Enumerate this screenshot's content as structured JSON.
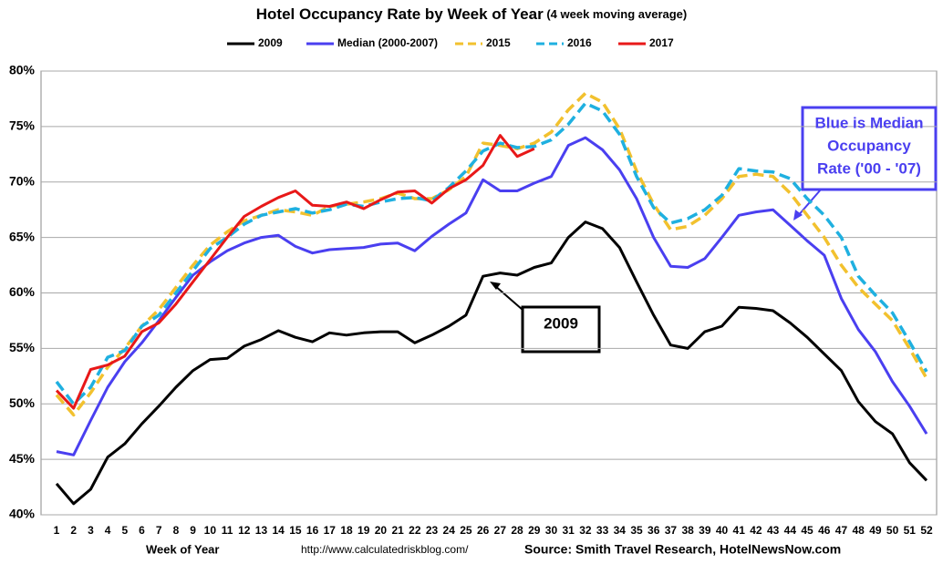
{
  "chart_data": {
    "type": "line",
    "title": "Hotel Occupancy Rate by  Week of Year",
    "subtitle": "(4 week moving average)",
    "x_label": "Week of Year",
    "footer_left": "http://www.calculatedriskblog.com/",
    "footer_right": "Source: Smith Travel Research, HotelNewsNow.com",
    "categories": [
      "1",
      "2",
      "3",
      "4",
      "5",
      "6",
      "7",
      "8",
      "9",
      "10",
      "11",
      "12",
      "13",
      "14",
      "15",
      "16",
      "17",
      "18",
      "19",
      "20",
      "21",
      "22",
      "23",
      "24",
      "25",
      "26",
      "27",
      "28",
      "29",
      "30",
      "31",
      "32",
      "33",
      "34",
      "35",
      "36",
      "37",
      "38",
      "39",
      "40",
      "41",
      "42",
      "43",
      "44",
      "45",
      "46",
      "47",
      "48",
      "49",
      "50",
      "51",
      "52"
    ],
    "ylim": [
      40,
      80
    ],
    "yticks": [
      {
        "value": 40,
        "label": "40%"
      },
      {
        "value": 45,
        "label": "45%"
      },
      {
        "value": 50,
        "label": "50%"
      },
      {
        "value": 55,
        "label": "55%"
      },
      {
        "value": 60,
        "label": "60%"
      },
      {
        "value": 65,
        "label": "65%"
      },
      {
        "value": 70,
        "label": "70%"
      },
      {
        "value": 75,
        "label": "75%"
      },
      {
        "value": 80,
        "label": "80%"
      }
    ],
    "grid": true,
    "legend": "top",
    "series": [
      {
        "name": "2009",
        "color": "#000000",
        "line_style": "solid",
        "values": [
          42.8,
          41,
          42.3,
          45.2,
          46.4,
          48.2,
          49.8,
          51.5,
          53,
          54,
          54.1,
          55.2,
          55.8,
          56.6,
          56,
          55.6,
          56.4,
          56.2,
          56.4,
          56.5,
          56.5,
          55.5,
          56.2,
          57,
          58,
          61.5,
          61.8,
          61.6,
          62.3,
          62.7,
          65,
          66.4,
          65.8,
          64.1,
          61,
          58,
          55.3,
          55,
          56.5,
          57,
          58.7,
          58.6,
          58.4,
          57.3,
          56,
          54.5,
          53,
          50.2,
          48.4,
          47.3,
          44.7,
          43.1
        ]
      },
      {
        "name": "Median (2000-2007)",
        "color": "#4a3ff0",
        "line_style": "solid",
        "values": [
          45.7,
          45.4,
          48.5,
          51.5,
          53.8,
          55.5,
          57.5,
          59.6,
          61.6,
          62.8,
          63.8,
          64.5,
          65,
          65.2,
          64.2,
          63.6,
          63.9,
          64,
          64.1,
          64.4,
          64.5,
          63.8,
          65.1,
          66.2,
          67.2,
          70.2,
          69.2,
          69.2,
          69.9,
          70.5,
          73.3,
          74,
          72.9,
          71.1,
          68.5,
          65,
          62.4,
          62.3,
          63.1,
          65,
          67,
          67.3,
          67.5,
          66.1,
          64.7,
          63.4,
          59.5,
          56.7,
          54.7,
          52,
          49.8,
          47.3
        ]
      },
      {
        "name": "2015",
        "color": "#f2c12e",
        "line_style": "dashed",
        "values": [
          50.8,
          49,
          51,
          53.3,
          55,
          57,
          58.5,
          60.5,
          62.5,
          64.3,
          65.5,
          66.5,
          67,
          67.5,
          67.3,
          67,
          67.8,
          68,
          68.2,
          68.5,
          69,
          68.5,
          68.5,
          69.3,
          70.5,
          73.5,
          73.3,
          73,
          73.5,
          74.5,
          76.5,
          78,
          77.2,
          74.8,
          71,
          68,
          65.7,
          66,
          67,
          68.5,
          70.5,
          70.7,
          70.5,
          69,
          67,
          65,
          62.5,
          60.5,
          59,
          57.5,
          55,
          52.3
        ]
      },
      {
        "name": "2016",
        "color": "#1fb0e0",
        "line_style": "dashed",
        "values": [
          52,
          50,
          51.5,
          54.2,
          54.8,
          57,
          58,
          60,
          62,
          64,
          65,
          66.2,
          67,
          67.3,
          67.6,
          67.2,
          67.5,
          68,
          67.8,
          68.2,
          68.5,
          68.6,
          68.3,
          69.5,
          71,
          72.8,
          73.5,
          73.1,
          73.2,
          73.8,
          75.2,
          77.1,
          76.4,
          74.3,
          70.5,
          67.7,
          66.3,
          66.7,
          67.5,
          68.8,
          71.2,
          71,
          70.9,
          70.3,
          68.5,
          67,
          65,
          61.5,
          59.8,
          58.2,
          55.6,
          52.9
        ]
      },
      {
        "name": "2017",
        "color": "#e81818",
        "line_style": "solid",
        "values": [
          51.2,
          49.6,
          53.1,
          53.5,
          54.3,
          56.5,
          57.3,
          59,
          61,
          63,
          65,
          66.9,
          67.8,
          68.6,
          69.2,
          67.9,
          67.8,
          68.2,
          67.6,
          68.4,
          69.1,
          69.2,
          68.1,
          69.4,
          70.2,
          71.5,
          74.2,
          72.3,
          73,
          null,
          null,
          null,
          null,
          null,
          null,
          null,
          null,
          null,
          null,
          null,
          null,
          null,
          null,
          null,
          null,
          null,
          null,
          null,
          null,
          null,
          null,
          null
        ]
      }
    ],
    "annotations": [
      {
        "lines": [
          "Blue is Median",
          "Occupancy",
          "Rate ('00 - '07)"
        ],
        "color": "#4a3ff0"
      },
      {
        "lines": [
          "2009"
        ],
        "color": "#000000"
      }
    ]
  }
}
